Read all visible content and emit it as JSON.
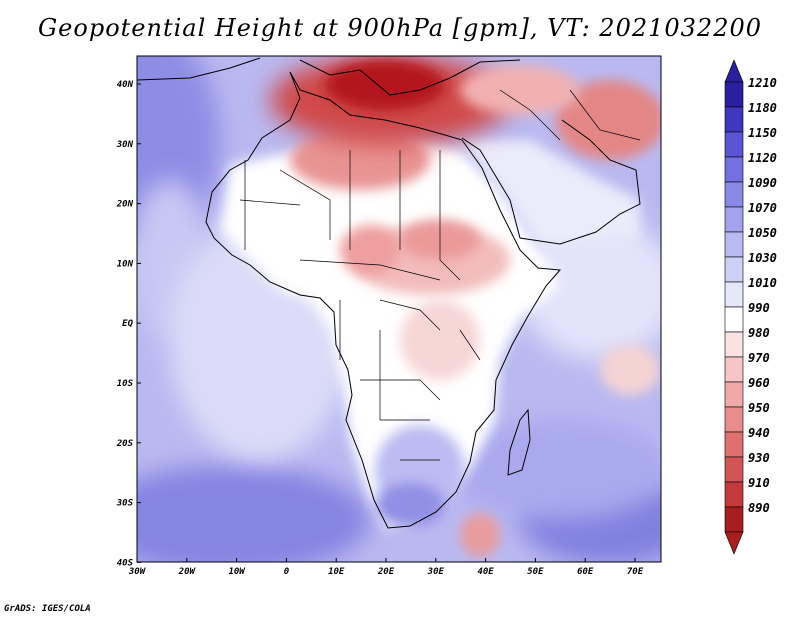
{
  "title": "Geopotential Height at 900hPa [gpm], VT: 2021032200",
  "credit": "GrADS: IGES/COLA",
  "lat_labels": [
    "40N",
    "30N",
    "20N",
    "10N",
    "EQ",
    "10S",
    "20S",
    "30S",
    "40S"
  ],
  "lon_labels": [
    "30W",
    "20W",
    "10W",
    "0",
    "10E",
    "20E",
    "30E",
    "40E",
    "50E",
    "60E",
    "70E"
  ],
  "colorbar": {
    "labels": [
      "1210",
      "1180",
      "1150",
      "1120",
      "1090",
      "1070",
      "1050",
      "1030",
      "1010",
      "990",
      "980",
      "970",
      "960",
      "950",
      "940",
      "930",
      "910",
      "890"
    ],
    "colors": [
      "#2b1fa0",
      "#3f37c0",
      "#5a55d6",
      "#7470e0",
      "#8a8ae6",
      "#a3a3ec",
      "#babaf2",
      "#cfd0f6",
      "#e6e7fb",
      "#ffffff",
      "#fbe1e1",
      "#f6c6c6",
      "#f0a9a9",
      "#e88d8d",
      "#df7070",
      "#d35454",
      "#c43a3a",
      "#a81e1e"
    ]
  },
  "colors": {
    "ocean_blue": "#9a9ae8",
    "land_white": "#ffffff",
    "heat_red": "#b3191c"
  }
}
